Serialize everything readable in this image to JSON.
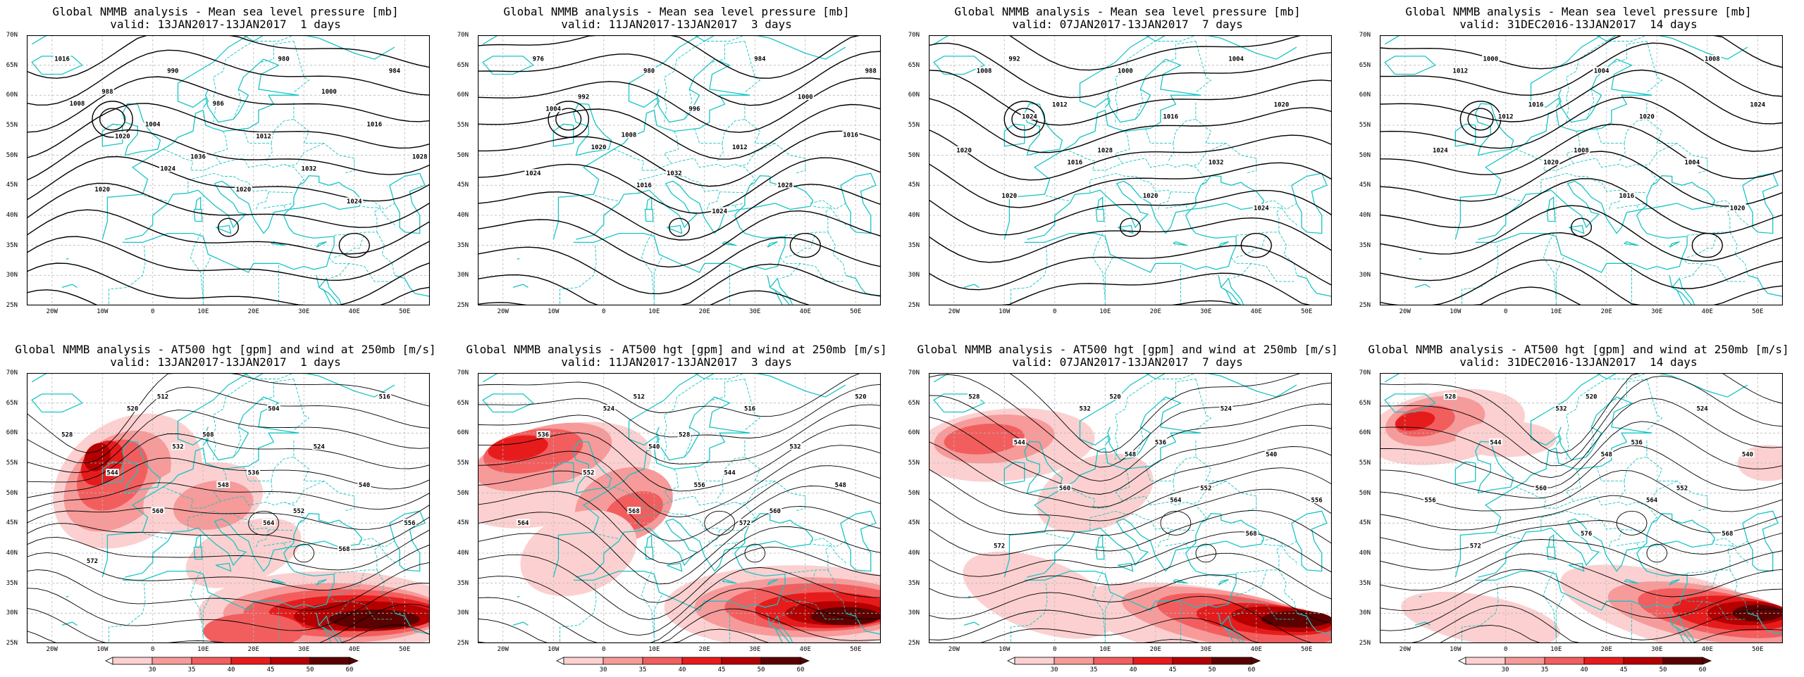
{
  "y_ticks": [
    "70N",
    "65N",
    "60N",
    "55N",
    "50N",
    "45N",
    "40N",
    "35N",
    "30N",
    "25N"
  ],
  "x_ticks": [
    "20W",
    "10W",
    "0",
    "10E",
    "20E",
    "30E",
    "40E",
    "50E"
  ],
  "colorbar_ticks": [
    "30",
    "35",
    "40",
    "45",
    "50",
    "60"
  ],
  "colors": {
    "coast": "#19c4c4",
    "contour": "#000000",
    "wind_fill": [
      "#fcd0d0",
      "#f79a9a",
      "#f25e5e",
      "#e61c1c",
      "#b40000",
      "#5c0000"
    ]
  },
  "panels": [
    {
      "id": "mslp-1d",
      "title_line1": "Global NMMB analysis - Mean sea level pressure [mb]",
      "title_line2": "valid: 13JAN2017-13JAN2017  1 days",
      "labels": [
        "1016",
        "990",
        "980",
        "984",
        "988",
        "986",
        "1000",
        "1008",
        "1004",
        "1012",
        "1016",
        "1020",
        "1036",
        "1032",
        "1028",
        "1024",
        "1020",
        "1024",
        "1020"
      ]
    },
    {
      "id": "mslp-3d",
      "title_line1": "Global NMMB analysis - Mean sea level pressure [mb]",
      "title_line2": "valid: 11JAN2017-13JAN2017  3 days",
      "labels": [
        "976",
        "980",
        "984",
        "988",
        "992",
        "996",
        "1000",
        "1004",
        "1008",
        "1012",
        "1016",
        "1020",
        "1032",
        "1028",
        "1024",
        "1016",
        "1024"
      ]
    },
    {
      "id": "mslp-7d",
      "title_line1": "Global NMMB analysis - Mean sea level pressure [mb]",
      "title_line2": "valid: 07JAN2017-13JAN2017  7 days",
      "labels": [
        "992",
        "1000",
        "1004",
        "1008",
        "1012",
        "1016",
        "1020",
        "1024",
        "1028",
        "1032",
        "1020",
        "1016",
        "1020",
        "1024",
        "1020"
      ]
    },
    {
      "id": "mslp-14d",
      "title_line1": "Global NMMB analysis - Mean sea level pressure [mb]",
      "title_line2": "valid: 31DEC2016-13JAN2017  14 days",
      "labels": [
        "1000",
        "1004",
        "1008",
        "1012",
        "1016",
        "1020",
        "1024",
        "1012",
        "1008",
        "1004",
        "1024",
        "1020",
        "1016",
        "1020"
      ]
    },
    {
      "id": "z500-1d",
      "title_line1": "Global NMMB analysis - AT500 hgt [gpm] and wind at 250mb [m/s]",
      "title_line2": "valid: 13JAN2017-13JAN2017  1 days",
      "labels": [
        "512",
        "504",
        "516",
        "520",
        "508",
        "524",
        "528",
        "532",
        "536",
        "540",
        "544",
        "548",
        "552",
        "556",
        "560",
        "564",
        "568",
        "572"
      ]
    },
    {
      "id": "z500-3d",
      "title_line1": "Global NMMB analysis - AT500 hgt [gpm] and wind at 250mb [m/s]",
      "title_line2": "valid: 11JAN2017-13JAN2017  3 days",
      "labels": [
        "512",
        "516",
        "520",
        "524",
        "528",
        "532",
        "536",
        "540",
        "544",
        "548",
        "552",
        "556",
        "560",
        "564",
        "568",
        "572"
      ]
    },
    {
      "id": "z500-7d",
      "title_line1": "Global NMMB analysis - AT500 hgt [gpm] and wind at 250mb [m/s]",
      "title_line2": "valid: 07JAN2017-13JAN2017  7 days",
      "labels": [
        "520",
        "524",
        "528",
        "532",
        "536",
        "540",
        "544",
        "548",
        "552",
        "556",
        "560",
        "564",
        "568",
        "572"
      ]
    },
    {
      "id": "z500-14d",
      "title_line1": "Global NMMB analysis - AT500 hgt [gpm] and wind at 250mb [m/s]",
      "title_line2": "valid: 31DEC2016-13JAN2017  14 days",
      "labels": [
        "520",
        "524",
        "528",
        "532",
        "536",
        "540",
        "544",
        "548",
        "552",
        "556",
        "560",
        "564",
        "568",
        "572",
        "576"
      ]
    }
  ]
}
